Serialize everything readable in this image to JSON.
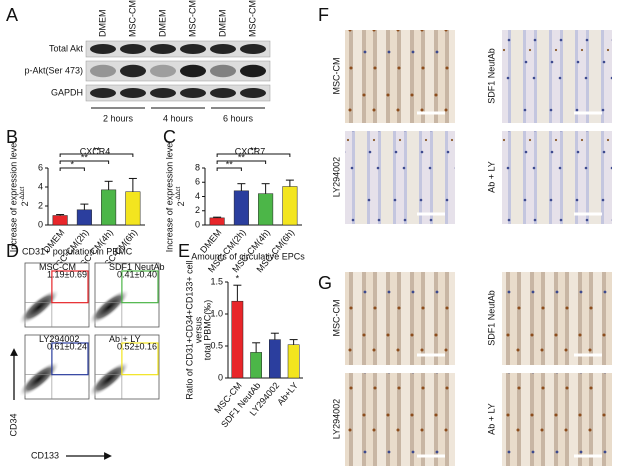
{
  "panel_labels": [
    "A",
    "B",
    "C",
    "D",
    "E",
    "F",
    "G"
  ],
  "blot": {
    "lanes": [
      "DMEM",
      "MSC-CM",
      "DMEM",
      "MSC-CM",
      "DMEM",
      "MSC-CM"
    ],
    "rows": [
      "Total Akt",
      "p-Akt(Ser 473)",
      "GAPDH"
    ],
    "times": [
      "2 hours",
      "4 hours",
      "6 hours"
    ]
  },
  "chart_data": [
    {
      "type": "bar",
      "title": "CXCR4",
      "ylabel": "Increase of expression level",
      "ylabel_base": "2",
      "ylabel_exponent": "-ΔΔct",
      "categories": [
        "DMEM",
        "MSC-CM(2h)",
        "MSC-CM(4h)",
        "MSC-CM(6h)"
      ],
      "values": [
        1.0,
        1.6,
        3.7,
        3.5
      ],
      "errors": [
        0.1,
        0.6,
        0.9,
        1.4
      ],
      "colors": [
        "#e8262a",
        "#2b3e9e",
        "#4cb648",
        "#f3e51f"
      ],
      "ylim": [
        0,
        6
      ],
      "yticks": [
        0,
        2,
        4,
        6
      ],
      "annotations": [
        "*",
        "**",
        "**"
      ]
    },
    {
      "type": "bar",
      "title": "CXCR7",
      "ylabel": "Increase of expression level",
      "ylabel_base": "2",
      "ylabel_exponent": "-ΔΔct",
      "categories": [
        "DMEM",
        "MSC-CM(2h)",
        "MSC-CM(4h)",
        "MSC-CM(6h)"
      ],
      "values": [
        1.0,
        4.8,
        4.4,
        5.4
      ],
      "errors": [
        0.1,
        1.0,
        1.4,
        0.9
      ],
      "colors": [
        "#e8262a",
        "#2b3e9e",
        "#4cb648",
        "#f3e51f"
      ],
      "ylim": [
        0,
        8
      ],
      "yticks": [
        0,
        2,
        4,
        6,
        8
      ],
      "annotations": [
        "**",
        "**",
        "**"
      ]
    },
    {
      "type": "bar",
      "title": "Amounts of circulative EPCs",
      "ylabel_lines": [
        "Ratio of CD31+CD34+CD133+ cell",
        "versus",
        "total PBMC(‰)"
      ],
      "categories": [
        "MSC-CM",
        "SDF1 NeutAb",
        "LY294002",
        "Ab+LY"
      ],
      "values": [
        1.2,
        0.4,
        0.6,
        0.52
      ],
      "errors": [
        0.25,
        0.15,
        0.1,
        0.08
      ],
      "colors": [
        "#e8262a",
        "#4cb648",
        "#2b3e9e",
        "#f3e51f"
      ],
      "ylim": [
        0,
        1.5
      ],
      "yticks": [
        0,
        0.5,
        {
          "value": 1,
          "label": "1.0"
        },
        1.5
      ],
      "annotations": [
        "*"
      ]
    }
  ],
  "flow": {
    "title": "CD31+ population in PBMC",
    "y_axis": "CD34",
    "x_axis": "CD133",
    "plots": [
      {
        "name": "MSC-CM",
        "value": "1.19±0.69",
        "color": "#e8262a"
      },
      {
        "name": "SDF1 NeutAb",
        "value": "0.41±0.40",
        "color": "#4cb648"
      },
      {
        "name": "LY294002",
        "value": "0.61±0.24",
        "color": "#2b3e9e"
      },
      {
        "name": "Ab + LY",
        "value": "0.52±0.16",
        "color": "#f3e51f"
      }
    ]
  },
  "histology": {
    "F": [
      "MSC-CM",
      "SDF1 NeutAb",
      "LY294002",
      "Ab + LY"
    ],
    "G": [
      "MSC-CM",
      "SDF1 NeutAb",
      "LY294002",
      "Ab + LY"
    ]
  }
}
